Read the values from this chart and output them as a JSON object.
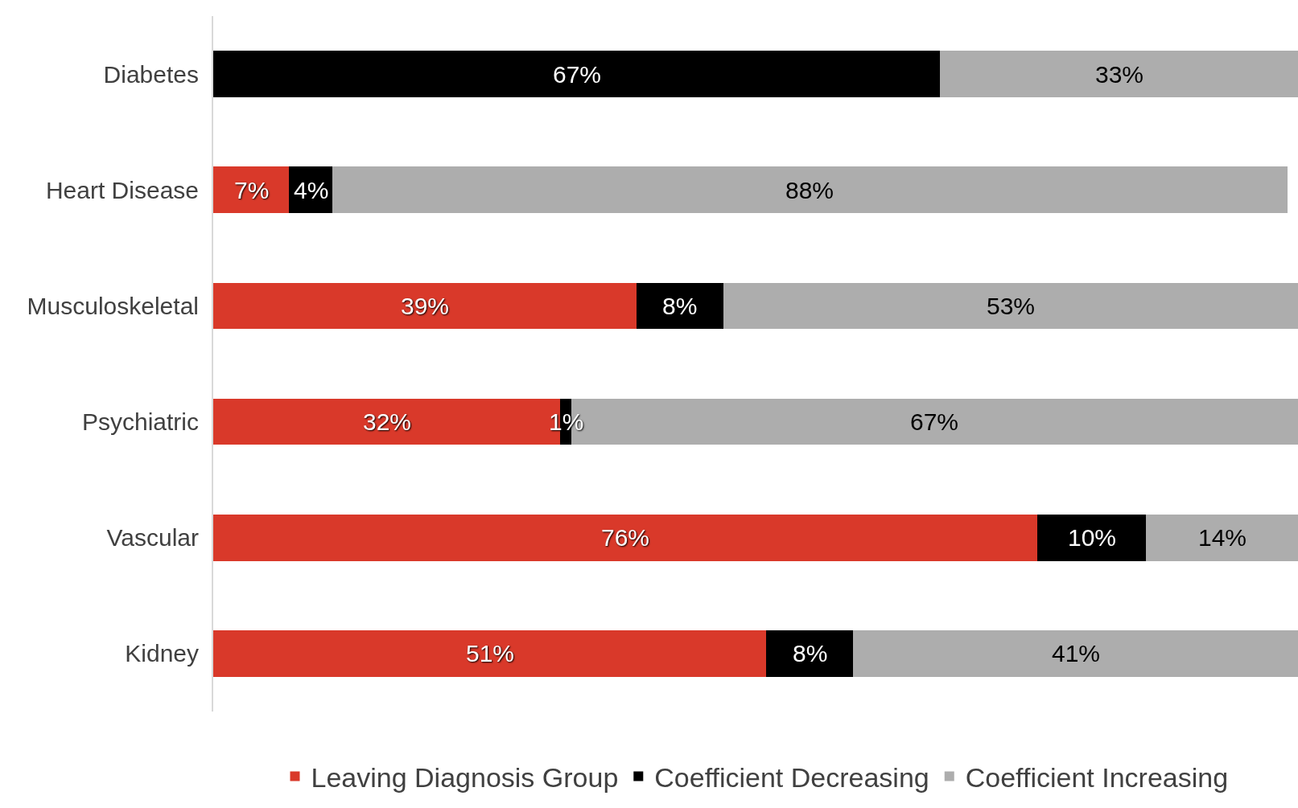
{
  "chart_data": {
    "type": "bar",
    "orientation": "horizontal",
    "stacked": true,
    "categories": [
      "Diabetes",
      "Heart Disease",
      "Musculoskeletal",
      "Psychiatric",
      "Vascular",
      "Kidney"
    ],
    "series": [
      {
        "name": "Leaving Diagnosis Group",
        "color": "#d9392a",
        "values": [
          0,
          7,
          39,
          32,
          76,
          51
        ],
        "value_labels": [
          null,
          "7%",
          "39%",
          "32%",
          "76%",
          "51%"
        ]
      },
      {
        "name": "Coefficient Decreasing",
        "color": "#000000",
        "values": [
          67,
          4,
          8,
          1,
          10,
          8
        ],
        "value_labels": [
          "67%",
          "4%",
          "8%",
          "1%",
          "10%",
          "8%"
        ]
      },
      {
        "name": "Coefficient Increasing",
        "color": "#adadad",
        "values": [
          33,
          88,
          53,
          67,
          14,
          41
        ],
        "value_labels": [
          "33%",
          "88%",
          "53%",
          "67%",
          "14%",
          "41%"
        ]
      }
    ],
    "xlim": [
      0,
      100
    ],
    "tick_labels": "y",
    "legend": "bottom"
  }
}
